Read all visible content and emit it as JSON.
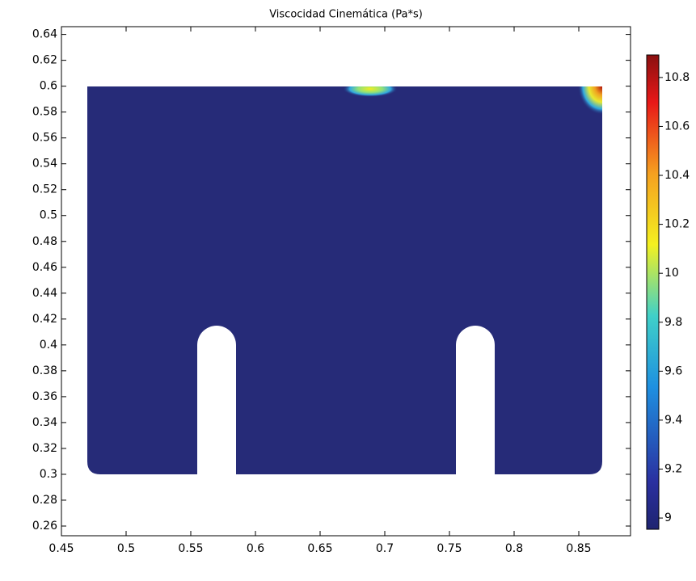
{
  "chart_data": {
    "type": "surface",
    "title": "Viscocidad Cinemática (Pa*s)",
    "xlim": [
      0.45,
      0.89
    ],
    "xticks": [
      0.45,
      0.5,
      0.55,
      0.6,
      0.65,
      0.7,
      0.75,
      0.8,
      0.85
    ],
    "ylim": [
      0.2525,
      0.646
    ],
    "yticks": [
      0.26,
      0.28,
      0.3,
      0.32,
      0.34,
      0.36,
      0.38,
      0.4,
      0.42,
      0.44,
      0.46,
      0.48,
      0.5,
      0.52,
      0.54,
      0.56,
      0.58,
      0.6,
      0.62,
      0.64
    ],
    "colormap": "jet",
    "colorbar_lim": [
      8.954,
      10.892
    ],
    "colorbar_ticks": [
      9,
      9.2,
      9.4,
      9.6,
      9.8,
      10,
      10.2,
      10.4,
      10.6,
      10.8
    ],
    "color": "#262b78"
  }
}
